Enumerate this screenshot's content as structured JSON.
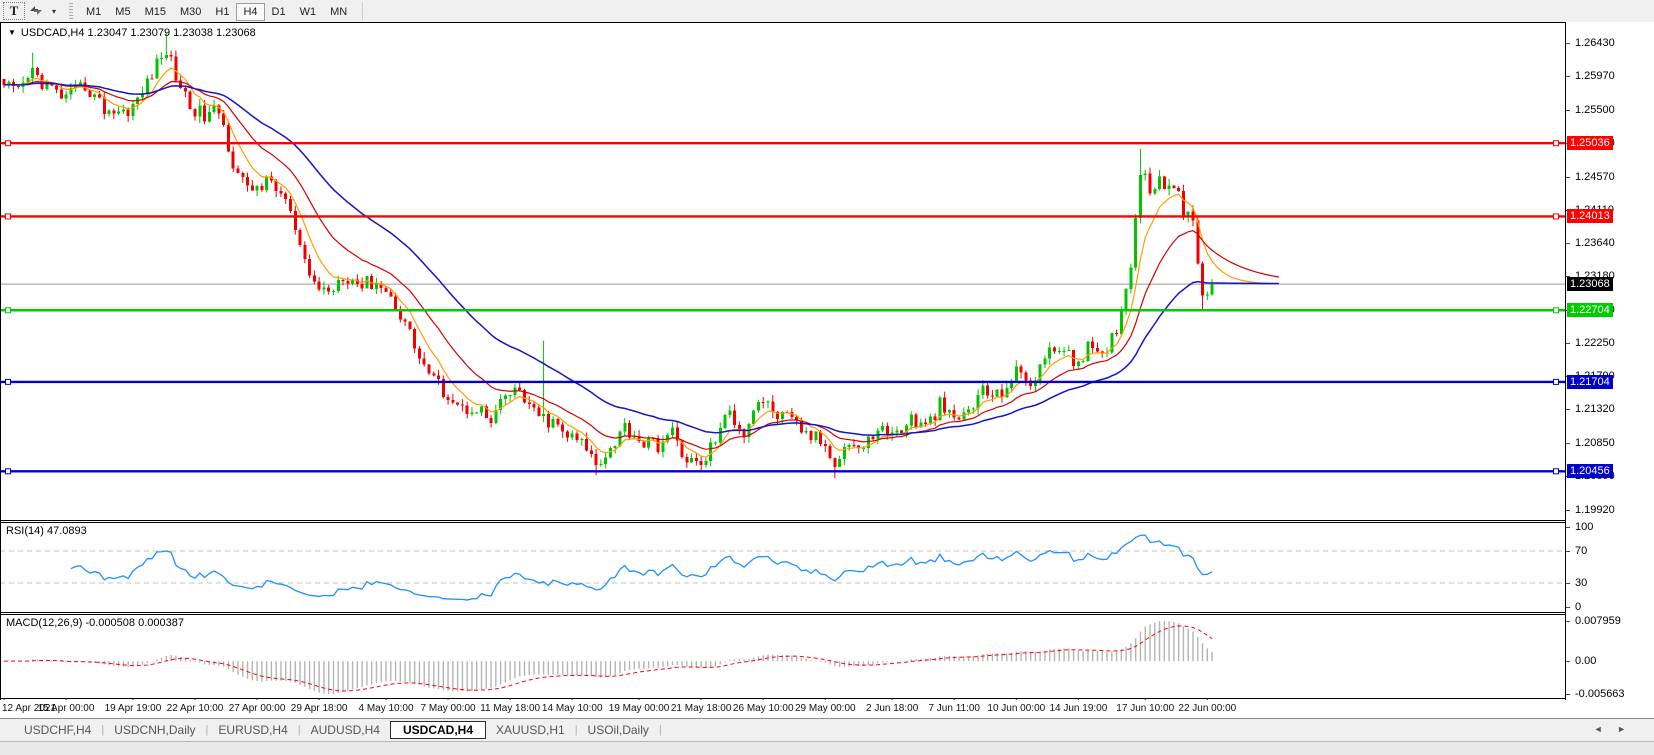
{
  "toolbar": {
    "text_tool": "T",
    "arrows_tool": "arrows",
    "dropdown_caret": "▾",
    "timeframes": [
      "M1",
      "M5",
      "M15",
      "M30",
      "H1",
      "H4",
      "D1",
      "W1",
      "MN"
    ],
    "active_timeframe": "H4"
  },
  "chart": {
    "title_text": "USDCAD,H4  1.23047 1.23079 1.23038 1.23068",
    "symbol": "USDCAD",
    "timeframe": "H4"
  },
  "panels": {
    "rsi": {
      "label": "RSI(14) 47.0893"
    },
    "macd": {
      "label": "MACD(12,26,9) -0.000508 0.000387"
    }
  },
  "tabs": {
    "items": [
      {
        "label": "USDCHF,H4",
        "active": false
      },
      {
        "label": "USDCNH,Daily",
        "active": false
      },
      {
        "label": "EURUSD,H4",
        "active": false
      },
      {
        "label": "AUDUSD,H4",
        "active": false
      },
      {
        "label": "USDCAD,H4",
        "active": true
      },
      {
        "label": "XAUUSD,H1",
        "active": false
      },
      {
        "label": "USOil,Daily",
        "active": false
      }
    ],
    "scroll_left": "◄",
    "scroll_right": "►"
  },
  "chart_data": {
    "type": "candlestick",
    "symbol": "USDCAD",
    "timeframe": "H4",
    "ohlc_display": {
      "open": "1.23047",
      "high": "1.23079",
      "low": "1.23038",
      "close": "1.23068"
    },
    "candle_count": 254,
    "candle_step": 4.775,
    "seed": 42,
    "body_noise": 0.0011,
    "wick_noise": 0.0009,
    "colors": {
      "up": "#00C400",
      "down": "#F00000"
    },
    "y_axis": {
      "top_price": 1.267,
      "bottom_price": 1.1979,
      "ticks": [
        "1.26430",
        "1.25970",
        "1.25500",
        "1.25040",
        "1.24570",
        "1.24110",
        "1.23640",
        "1.23180",
        "1.22710",
        "1.22250",
        "1.21790",
        "1.21320",
        "1.20850",
        "1.20390",
        "1.19920"
      ]
    },
    "x_labels": [
      "12 Apr 2021",
      "15 Apr 00:00",
      "19 Apr 19:00",
      "22 Apr 10:00",
      "27 Apr 00:00",
      "29 Apr 18:00",
      "4 May 10:00",
      "7 May 00:00",
      "11 May 18:00",
      "14 May 10:00",
      "19 May 00:00",
      "21 May 18:00",
      "26 May 10:00",
      "29 May 00:00",
      "2 Jun 18:00",
      "7 Jun 11:00",
      "10 Jun 00:00",
      "14 Jun 19:00",
      "17 Jun 10:00",
      "22 Jun 00:00"
    ],
    "price_keypoints": [
      [
        0,
        1.2585
      ],
      [
        3,
        1.2572
      ],
      [
        6,
        1.2604
      ],
      [
        9,
        1.2582
      ],
      [
        13,
        1.2566
      ],
      [
        17,
        1.2584
      ],
      [
        21,
        1.2552
      ],
      [
        25,
        1.2547
      ],
      [
        28,
        1.2562
      ],
      [
        31,
        1.2602
      ],
      [
        34,
        1.2634
      ],
      [
        36,
        1.2598
      ],
      [
        39,
        1.2556
      ],
      [
        42,
        1.2541
      ],
      [
        45,
        1.2549
      ],
      [
        48,
        1.2478
      ],
      [
        51,
        1.2436
      ],
      [
        53,
        1.2444
      ],
      [
        56,
        1.2449
      ],
      [
        59,
        1.2424
      ],
      [
        61,
        1.2381
      ],
      [
        63,
        1.2331
      ],
      [
        65,
        1.2308
      ],
      [
        68,
        1.2295
      ],
      [
        71,
        1.2322
      ],
      [
        75,
        1.2306
      ],
      [
        78,
        1.2312
      ],
      [
        81,
        1.2288
      ],
      [
        84,
        1.2255
      ],
      [
        87,
        1.2205
      ],
      [
        90,
        1.2172
      ],
      [
        93,
        1.2153
      ],
      [
        96,
        1.2132
      ],
      [
        99,
        1.2137
      ],
      [
        102,
        1.2112
      ],
      [
        105,
        1.215
      ],
      [
        108,
        1.2158
      ],
      [
        111,
        1.2125
      ],
      [
        115,
        1.2112
      ],
      [
        118,
        1.2095
      ],
      [
        121,
        1.2085
      ],
      [
        124,
        1.2058
      ],
      [
        127,
        1.2078
      ],
      [
        130,
        1.2108
      ],
      [
        134,
        1.2085
      ],
      [
        137,
        1.2083
      ],
      [
        140,
        1.2098
      ],
      [
        143,
        1.2062
      ],
      [
        146,
        1.2052
      ],
      [
        149,
        1.2092
      ],
      [
        152,
        1.2128
      ],
      [
        155,
        1.2101
      ],
      [
        158,
        1.2147
      ],
      [
        162,
        1.2125
      ],
      [
        165,
        1.2115
      ],
      [
        168,
        1.2098
      ],
      [
        171,
        1.2088
      ],
      [
        174,
        1.2062
      ],
      [
        177,
        1.2086
      ],
      [
        180,
        1.2076
      ],
      [
        183,
        1.2108
      ],
      [
        186,
        1.2095
      ],
      [
        190,
        1.2118
      ],
      [
        193,
        1.2105
      ],
      [
        196,
        1.2138
      ],
      [
        199,
        1.2115
      ],
      [
        202,
        1.213
      ],
      [
        205,
        1.2158
      ],
      [
        208,
        1.215
      ],
      [
        212,
        1.2183
      ],
      [
        215,
        1.217
      ],
      [
        218,
        1.2203
      ],
      [
        221,
        1.2223
      ],
      [
        224,
        1.2195
      ],
      [
        227,
        1.2218
      ],
      [
        230,
        1.22
      ],
      [
        233,
        1.2248
      ],
      [
        236,
        1.233
      ],
      [
        237,
        1.2408
      ],
      [
        238,
        1.247
      ],
      [
        240,
        1.2438
      ],
      [
        242,
        1.246
      ],
      [
        244,
        1.2434
      ],
      [
        246,
        1.2444
      ],
      [
        247,
        1.2408
      ],
      [
        249,
        1.239
      ],
      [
        250,
        1.2345
      ],
      [
        251,
        1.2286
      ],
      [
        252,
        1.2297
      ],
      [
        253,
        1.23068
      ]
    ],
    "spikes": [
      {
        "i": 6,
        "h": 1.263
      },
      {
        "i": 34,
        "h": 1.2658
      },
      {
        "i": 113,
        "h": 1.2228
      },
      {
        "i": 124,
        "l": 1.204
      },
      {
        "i": 146,
        "l": 1.2044
      },
      {
        "i": 174,
        "l": 1.2036
      },
      {
        "i": 238,
        "h": 1.2496
      },
      {
        "i": 251,
        "l": 1.227
      }
    ],
    "moving_averages": [
      {
        "name": "fast",
        "period": 7,
        "color": "#FF9C00",
        "width": 1.2
      },
      {
        "name": "mid",
        "period": 18,
        "color": "#D40000",
        "width": 1.2
      },
      {
        "name": "slow",
        "period": 40,
        "color": "#1414C8",
        "width": 1.5
      }
    ],
    "horizontal_lines": [
      {
        "price": 1.25036,
        "label": "1.25036",
        "color": "#FF0000"
      },
      {
        "price": 1.24013,
        "label": "1.24013",
        "color": "#FF0000"
      },
      {
        "price": 1.22704,
        "label": "1.22704",
        "color": "#00CC00"
      },
      {
        "price": 1.21704,
        "label": "1.21704",
        "color": "#0000CC"
      },
      {
        "price": 1.20456,
        "label": "1.20456",
        "color": "#0000CC"
      }
    ],
    "current_price": {
      "value": 1.23068,
      "label": "1.23068",
      "line_color": "#9a9a9a",
      "badge_color": "#000000"
    },
    "indicators": {
      "rsi": {
        "period": 14,
        "current": "47.0893",
        "color": "#1E90FF",
        "levels": [
          70,
          30
        ],
        "axis_labels": [
          {
            "text": "100",
            "value": 100
          },
          {
            "text": "70",
            "value": 70
          },
          {
            "text": "30",
            "value": 30
          },
          {
            "text": "0",
            "value": 0
          }
        ]
      },
      "macd": {
        "fast": 12,
        "slow": 26,
        "signal": 9,
        "current_main": "-0.000508",
        "current_signal": "0.000387",
        "hist_color": "#B4B4B4",
        "signal_color": "#FF0000",
        "axis_max": "0.007959",
        "axis_zero": "0.00",
        "axis_min": "-0.005663"
      }
    }
  }
}
